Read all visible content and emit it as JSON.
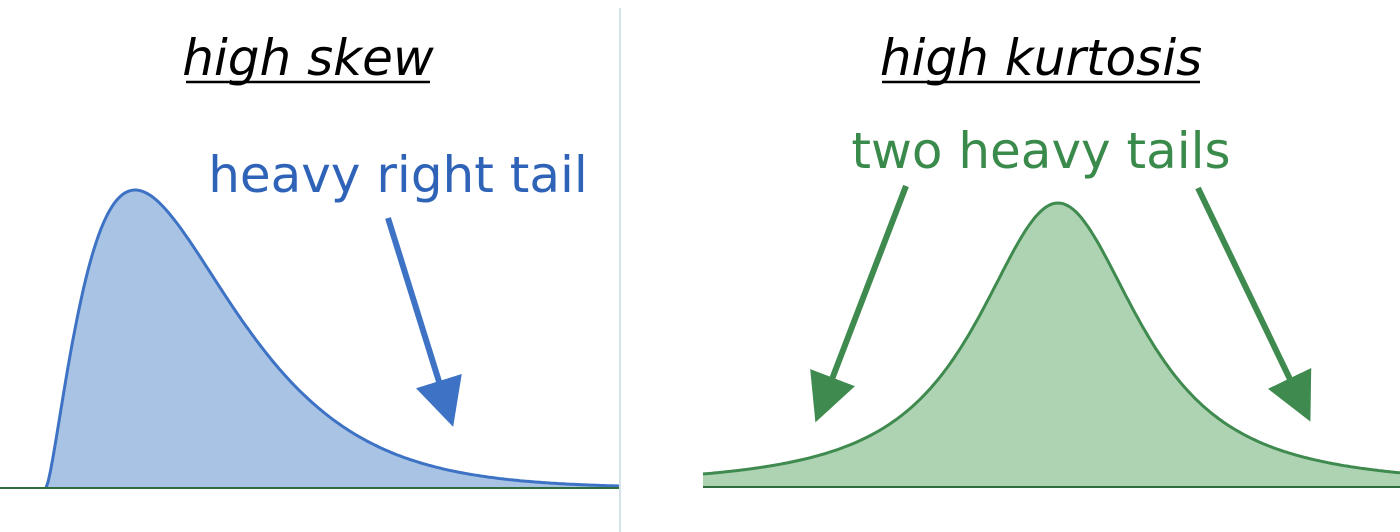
{
  "left_panel": {
    "title": "high skew",
    "annotation": "heavy right tail",
    "stroke_color": "#3d72c4",
    "fill_color": "#a8c3e3",
    "text_color": "#2f63b8"
  },
  "right_panel": {
    "title": "high kurtosis",
    "annotation": "two heavy tails",
    "stroke_color": "#3f8a4e",
    "fill_color": "#add3b2",
    "text_color": "#3a8a4c"
  },
  "colors": {
    "divider": "#c9d8e4",
    "baseline": "#2f6c3e"
  }
}
